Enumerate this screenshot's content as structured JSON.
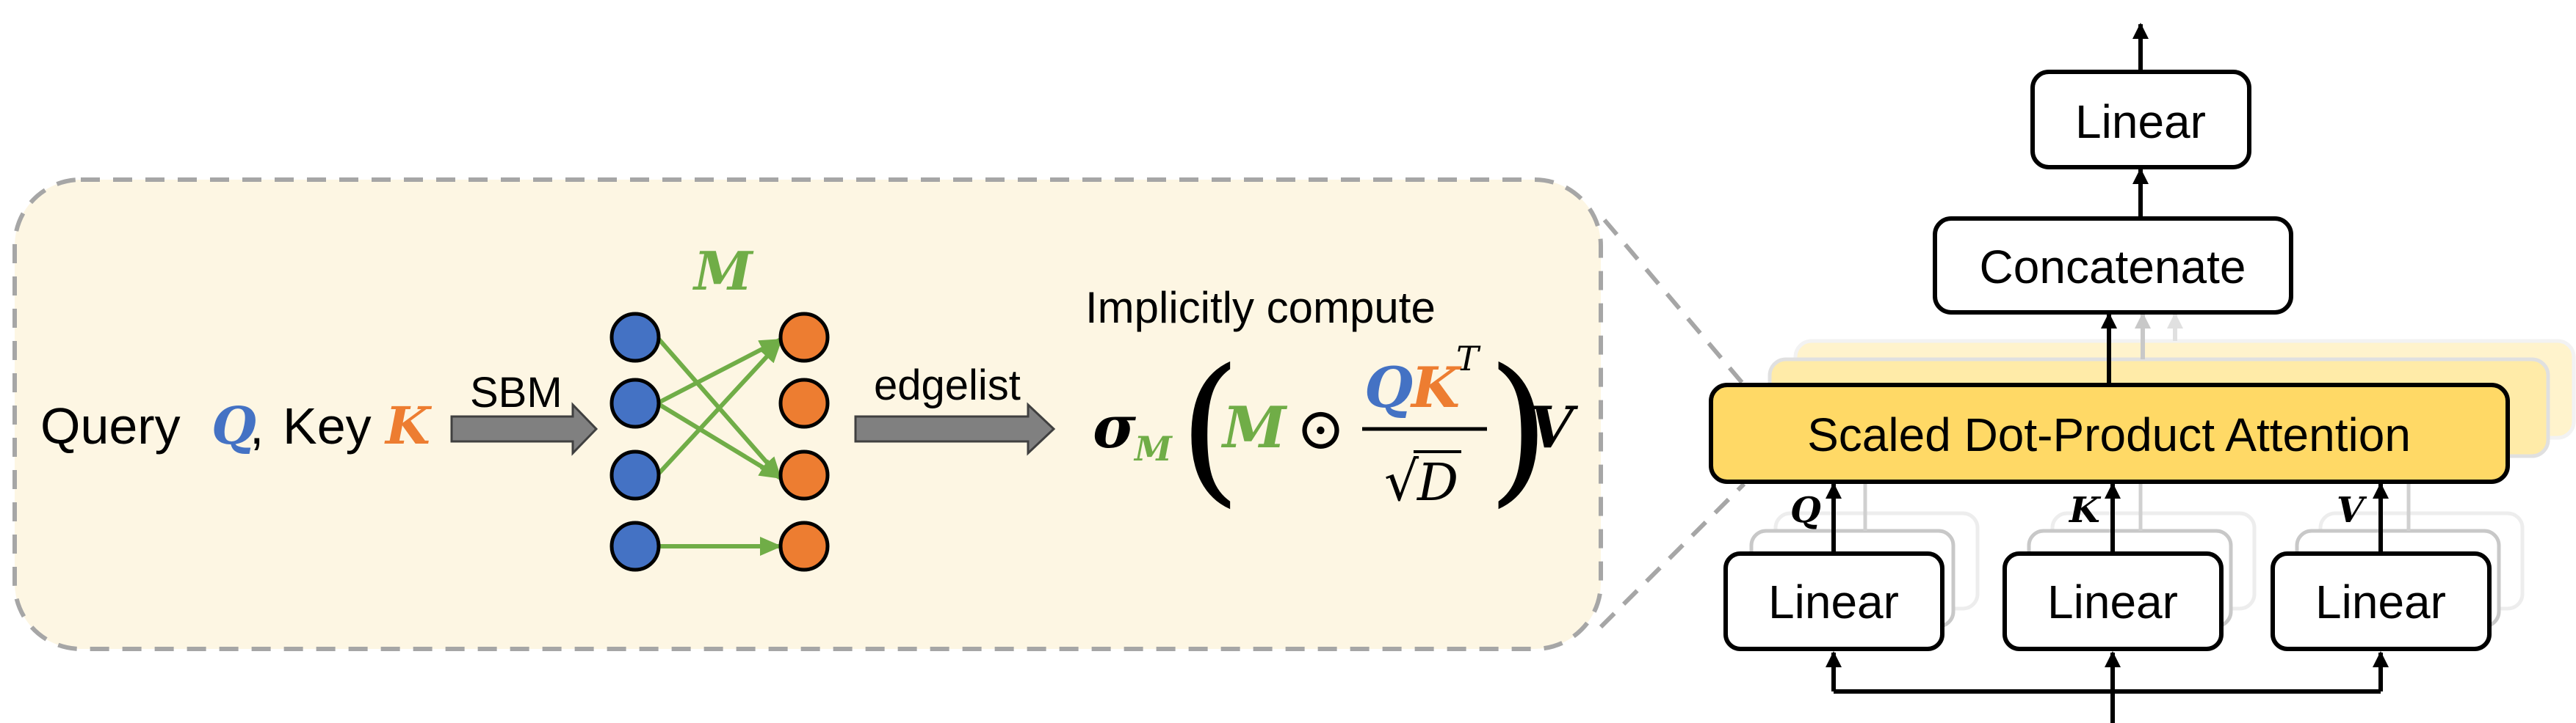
{
  "left_panel": {
    "query_text": "Query",
    "q_symbol": "Q",
    "comma": ",",
    "key_text": "Key",
    "k_symbol": "K",
    "sbm_label": "SBM",
    "matrix_symbol": "M",
    "edgelist_label": "edgelist",
    "implicit_label": "Implicitly compute"
  },
  "formula": {
    "sigma": "σ",
    "sigma_subscript": "M",
    "open_paren": "(",
    "m_symbol": "M",
    "hadamard": "⊙",
    "num_q": "Q",
    "num_k": "K",
    "num_t": "T",
    "den_sqrt": "√",
    "den_d": "D",
    "close_paren": ")",
    "v_symbol": "V"
  },
  "right_panel": {
    "top_linear": "Linear",
    "concatenate": "Concatenate",
    "attention": "Scaled Dot-Product Attention",
    "input_linears": [
      "Linear",
      "Linear",
      "Linear"
    ],
    "input_labels": [
      "Q",
      "K",
      "V"
    ]
  },
  "colors": {
    "blue": "#4472C4",
    "orange": "#ED7D31",
    "green": "#70AD47",
    "panel_fill": "#FDF6E3",
    "panel_border": "#A6A6A6",
    "attention_fill": "#FFD966",
    "gray_arrow": "#808080"
  }
}
